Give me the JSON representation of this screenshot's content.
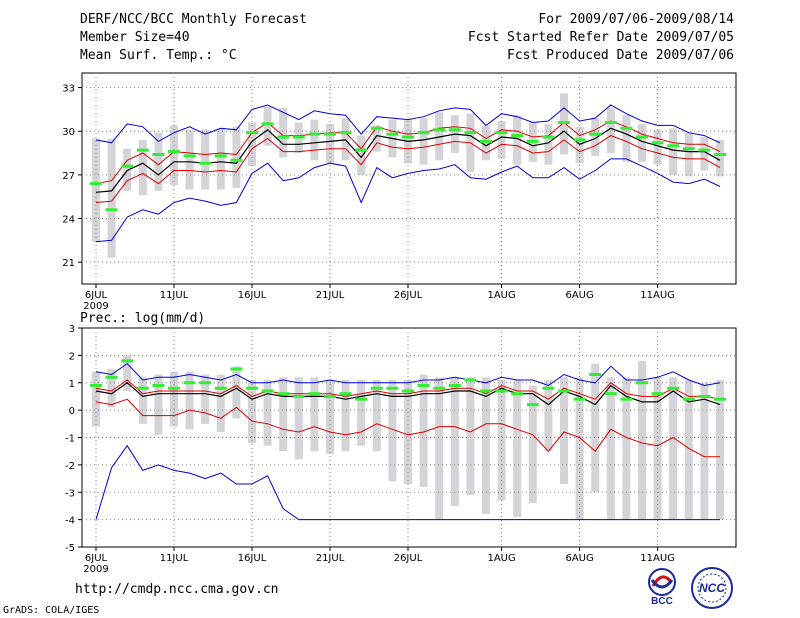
{
  "header": {
    "title": "DERF/NCC/BCC Monthly Forecast",
    "member_size": "Member Size=40",
    "variable_top": "Mean Surf. Temp.: °C",
    "for_period": "For 2009/07/06-2009/08/14",
    "fcst_started": "Fcst Started Refer Date 2009/07/05",
    "fcst_produced": "Fcst Produced Date 2009/07/06"
  },
  "footer": {
    "url": "http://cmdp.ncc.cma.gov.cn",
    "credit": "GrADS: COLA/IGES",
    "logo_left": "BCC",
    "logo_right": "NCC"
  },
  "colors": {
    "box": "#d4d4d8",
    "median": "#33ee33",
    "mean": "#000000",
    "spread": "#dd0000",
    "envelope": "#0000dd",
    "grid": "#888888"
  },
  "chart_data": [
    {
      "type": "line",
      "name": "temperature",
      "title": "Mean Surf. Temp.: °C",
      "ylim": [
        19.5,
        34
      ],
      "yticks": [
        21,
        24,
        27,
        30,
        33
      ],
      "x_ticks": [
        {
          "day": 0,
          "label": "6JUL",
          "label2": "2009"
        },
        {
          "day": 5,
          "label": "11JUL"
        },
        {
          "day": 10,
          "label": "16JUL"
        },
        {
          "day": 15,
          "label": "21JUL"
        },
        {
          "day": 20,
          "label": "26JUL"
        },
        {
          "day": 26,
          "label": "1AUG"
        },
        {
          "day": 31,
          "label": "6AUG"
        },
        {
          "day": 36,
          "label": "11AUG"
        }
      ],
      "days": 40,
      "grid": true,
      "mean": [
        25.8,
        25.9,
        27.3,
        27.8,
        27.0,
        27.9,
        27.9,
        27.8,
        27.9,
        27.8,
        29.3,
        30.1,
        29.1,
        29.1,
        29.2,
        29.3,
        29.4,
        28.2,
        29.7,
        29.5,
        29.3,
        29.4,
        29.6,
        29.8,
        29.7,
        29.0,
        29.6,
        29.5,
        29.0,
        29.2,
        30.0,
        29.1,
        29.5,
        30.2,
        29.8,
        29.3,
        29.0,
        28.7,
        28.6,
        28.6,
        28.0
      ],
      "upper": [
        26.4,
        26.6,
        28.0,
        28.5,
        27.7,
        28.6,
        28.5,
        28.4,
        28.5,
        28.4,
        29.9,
        30.6,
        29.7,
        29.7,
        29.8,
        29.9,
        29.9,
        28.8,
        30.3,
        30.0,
        29.8,
        29.9,
        30.2,
        30.3,
        30.2,
        29.5,
        30.1,
        30.0,
        29.6,
        29.7,
        30.6,
        29.7,
        30.1,
        30.7,
        30.3,
        29.8,
        29.5,
        29.2,
        29.1,
        29.1,
        28.6
      ],
      "lower": [
        25.1,
        25.2,
        26.6,
        27.1,
        26.4,
        27.3,
        27.3,
        27.2,
        27.3,
        27.2,
        28.8,
        29.5,
        28.6,
        28.6,
        28.7,
        28.8,
        28.8,
        27.7,
        29.2,
        28.9,
        28.8,
        28.9,
        29.1,
        29.3,
        29.2,
        28.5,
        29.1,
        29.0,
        28.5,
        28.6,
        29.4,
        28.6,
        29.0,
        29.7,
        29.3,
        28.8,
        28.5,
        28.2,
        28.1,
        28.1,
        27.5
      ],
      "max": [
        29.4,
        29.2,
        30.5,
        30.3,
        29.3,
        29.9,
        30.3,
        29.8,
        30.2,
        30.1,
        31.5,
        31.8,
        31.3,
        30.8,
        31.4,
        31.2,
        31.1,
        29.8,
        31.0,
        30.9,
        30.8,
        31.0,
        31.4,
        31.6,
        31.5,
        30.4,
        31.2,
        31.0,
        30.6,
        30.7,
        31.6,
        30.7,
        30.9,
        31.8,
        31.2,
        30.7,
        30.4,
        30.4,
        29.9,
        29.7,
        29.2
      ],
      "min": [
        22.4,
        22.5,
        24.1,
        24.6,
        24.3,
        25.1,
        25.4,
        25.2,
        24.9,
        25.1,
        27.1,
        27.8,
        26.6,
        26.8,
        27.5,
        27.8,
        27.6,
        25.1,
        27.5,
        26.8,
        27.1,
        27.3,
        27.4,
        27.7,
        26.8,
        26.7,
        27.2,
        27.6,
        26.8,
        26.8,
        27.5,
        26.7,
        27.3,
        28.1,
        28.1,
        27.6,
        27.1,
        26.5,
        26.4,
        26.7,
        26.2
      ],
      "median": [
        26.4,
        24.6,
        27.6,
        28.7,
        28.4,
        28.6,
        28.3,
        27.8,
        28.3,
        28.0,
        29.9,
        30.5,
        29.6,
        29.6,
        29.8,
        29.8,
        29.9,
        28.7,
        30.2,
        29.8,
        29.6,
        29.9,
        30.1,
        30.1,
        29.9,
        29.3,
        29.9,
        29.7,
        29.3,
        29.6,
        30.6,
        29.4,
        29.8,
        30.6,
        30.2,
        29.6,
        29.2,
        29.0,
        28.8,
        28.7,
        28.4
      ],
      "box_top": [
        29.5,
        29.5,
        28.8,
        29.4,
        29.9,
        30.4,
        30.1,
        30.1,
        30.2,
        30.3,
        30.6,
        31.7,
        31.6,
        30.6,
        30.8,
        30.5,
        30.9,
        29.7,
        30.4,
        30.8,
        30.8,
        30.9,
        31.3,
        31.1,
        31.2,
        30.4,
        30.7,
        31.1,
        30.6,
        30.5,
        32.6,
        30.3,
        30.9,
        31.6,
        31.1,
        30.5,
        30.1,
        30.2,
        29.9,
        29.6,
        29.4
      ],
      "box_bottom": [
        22.4,
        21.3,
        25.9,
        25.6,
        25.9,
        26.3,
        26.0,
        26.0,
        26.0,
        26.1,
        27.6,
        29.0,
        28.2,
        28.5,
        28.0,
        27.8,
        28.0,
        27.0,
        28.6,
        28.2,
        27.8,
        27.7,
        28.0,
        28.5,
        27.2,
        28.0,
        28.1,
        27.7,
        27.9,
        27.7,
        28.4,
        27.8,
        28.3,
        28.5,
        27.9,
        27.9,
        27.7,
        27.0,
        26.9,
        27.3,
        26.9
      ]
    },
    {
      "type": "line",
      "name": "precipitation",
      "title": "Prec.: log(mm/d)",
      "ylim": [
        -5,
        3
      ],
      "yticks": [
        -5,
        -4,
        -3,
        -2,
        -1,
        0,
        1,
        2,
        3
      ],
      "x_ticks": [
        {
          "day": 0,
          "label": "6JUL",
          "label2": "2009"
        },
        {
          "day": 5,
          "label": "11JUL"
        },
        {
          "day": 10,
          "label": "16JUL"
        },
        {
          "day": 15,
          "label": "21JUL"
        },
        {
          "day": 20,
          "label": "26JUL"
        },
        {
          "day": 26,
          "label": "1AUG"
        },
        {
          "day": 31,
          "label": "6AUG"
        },
        {
          "day": 36,
          "label": "11AUG"
        }
      ],
      "days": 40,
      "grid": true,
      "mean": [
        0.7,
        0.6,
        1.0,
        0.5,
        0.6,
        0.6,
        0.6,
        0.6,
        0.5,
        0.8,
        0.4,
        0.6,
        0.5,
        0.5,
        0.5,
        0.5,
        0.4,
        0.5,
        0.6,
        0.5,
        0.5,
        0.6,
        0.6,
        0.7,
        0.7,
        0.5,
        0.8,
        0.6,
        0.6,
        0.2,
        0.7,
        0.5,
        0.2,
        0.9,
        0.5,
        0.3,
        0.3,
        0.7,
        0.3,
        0.4,
        0.2
      ],
      "upper": [
        0.8,
        0.7,
        1.1,
        0.6,
        0.7,
        0.7,
        0.7,
        0.7,
        0.6,
        0.9,
        0.5,
        0.7,
        0.6,
        0.6,
        0.6,
        0.6,
        0.5,
        0.6,
        0.7,
        0.6,
        0.6,
        0.7,
        0.7,
        0.8,
        0.8,
        0.6,
        0.9,
        0.7,
        0.7,
        0.4,
        0.8,
        0.6,
        0.4,
        1.0,
        0.6,
        0.5,
        0.5,
        0.8,
        0.5,
        0.5,
        0.4
      ],
      "lower": [
        0.3,
        0.2,
        0.4,
        -0.2,
        -0.2,
        -0.2,
        0.0,
        -0.1,
        -0.3,
        0.1,
        -0.4,
        -0.5,
        -0.7,
        -0.8,
        -0.6,
        -0.8,
        -0.9,
        -0.8,
        -0.5,
        -0.7,
        -0.9,
        -0.8,
        -0.6,
        -0.6,
        -0.8,
        -0.5,
        -0.5,
        -0.7,
        -0.9,
        -1.5,
        -0.8,
        -1.0,
        -1.5,
        -0.7,
        -1.0,
        -1.2,
        -1.3,
        -1.0,
        -1.4,
        -1.7,
        -1.7
      ],
      "max": [
        1.4,
        1.3,
        1.7,
        1.1,
        1.2,
        1.2,
        1.3,
        1.2,
        1.1,
        1.3,
        1.0,
        1.0,
        1.1,
        1.0,
        1.0,
        1.1,
        1.0,
        1.0,
        1.0,
        1.0,
        1.0,
        1.1,
        1.1,
        1.2,
        1.1,
        1.0,
        1.2,
        1.1,
        1.1,
        0.9,
        1.3,
        1.1,
        1.0,
        1.6,
        1.1,
        1.1,
        1.2,
        1.4,
        1.1,
        0.9,
        1.0
      ],
      "min": [
        -4.0,
        -2.1,
        -1.3,
        -2.2,
        -2.0,
        -2.2,
        -2.3,
        -2.5,
        -2.3,
        -2.7,
        -2.7,
        -2.4,
        -3.6,
        -4.0,
        -4.0,
        -4.0,
        -4.0,
        -4.0,
        -4.0,
        -4.0,
        -4.0,
        -4.0,
        -4.0,
        -4.0,
        -4.0,
        -4.0,
        -4.0,
        -4.0,
        -4.0,
        -4.0,
        -4.0,
        -4.0,
        -4.0,
        -4.0,
        -4.0,
        -4.0,
        -4.0,
        -4.0,
        -4.0,
        -4.0,
        -4.0
      ],
      "median": [
        0.9,
        1.2,
        1.8,
        0.8,
        0.9,
        0.8,
        1.0,
        1.0,
        0.8,
        1.5,
        0.8,
        0.7,
        0.6,
        0.5,
        0.6,
        0.5,
        0.6,
        0.4,
        0.8,
        0.8,
        0.7,
        0.9,
        0.8,
        0.9,
        1.1,
        0.7,
        0.7,
        0.6,
        0.2,
        0.8,
        0.7,
        0.4,
        1.3,
        0.6,
        0.4,
        1.0,
        0.6,
        0.8,
        0.4,
        0.5,
        0.4
      ],
      "box_top": [
        1.4,
        1.5,
        2.0,
        1.2,
        1.3,
        1.4,
        1.4,
        1.3,
        1.3,
        1.6,
        1.1,
        1.1,
        1.2,
        1.2,
        1.2,
        1.1,
        1.1,
        1.1,
        1.1,
        1.1,
        1.1,
        1.3,
        1.2,
        1.2,
        1.2,
        1.2,
        1.1,
        1.1,
        0.9,
        1.1,
        1.2,
        1.2,
        1.7,
        1.2,
        1.2,
        1.8,
        1.2,
        1.2,
        1.1,
        1.0,
        1.1
      ],
      "box_bottom": [
        -0.6,
        0.1,
        0.7,
        -0.5,
        -0.9,
        -0.6,
        -0.7,
        -0.5,
        -0.8,
        -0.3,
        -1.2,
        -1.3,
        -1.5,
        -1.8,
        -1.5,
        -1.6,
        -1.5,
        -1.3,
        -1.5,
        -2.6,
        -2.7,
        -2.8,
        -4.0,
        -3.5,
        -3.1,
        -3.8,
        -3.3,
        -3.9,
        -3.4,
        -1.5,
        -2.7,
        -4.0,
        -3.0,
        -4.0,
        -4.0,
        -4.0,
        -4.0,
        -4.0,
        -4.0,
        -4.0,
        -4.0
      ]
    }
  ]
}
